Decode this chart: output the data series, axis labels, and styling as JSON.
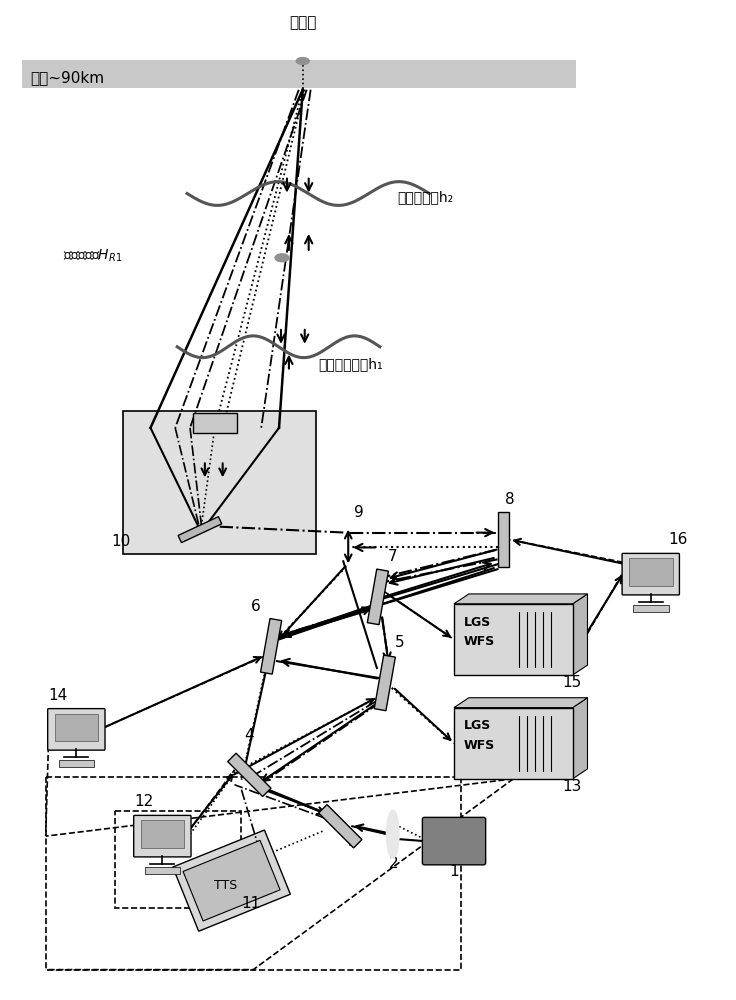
{
  "title": "钠信标",
  "sodium_layer_label": "钠层~90km",
  "high_turbulence_label": "高层湍流，h₂",
  "rayleigh_label": "瑞利信标，Hₜ₁",
  "surface_turbulence_label": "地表层湍流，h₁",
  "bg_color": "#ffffff",
  "sodium_layer_color": "#c8c8c8",
  "tel_box_color": "#e0e0e0",
  "mirror_color": "#b8b8b8",
  "wfs_box_color": "#d0d0d0"
}
